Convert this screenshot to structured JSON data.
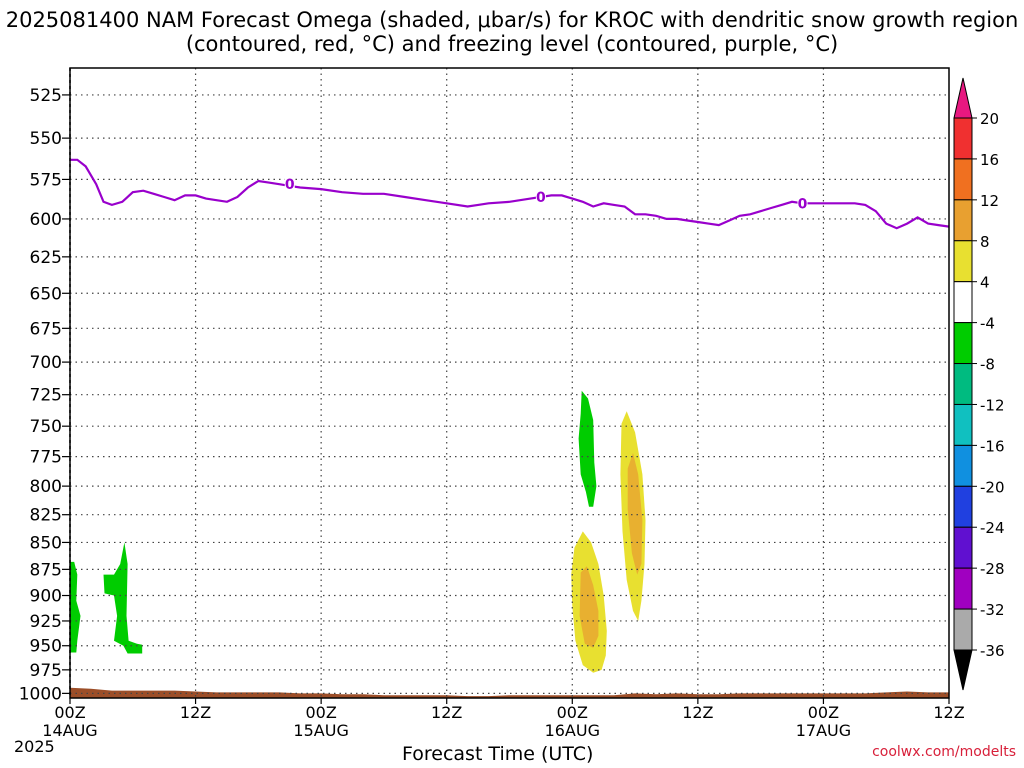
{
  "title": "2025081400 NAM Forecast Omega (shaded, μbar/s) for KROC with dendritic snow growth region (contoured, red, °C) and freezing level (contoured, purple, °C)",
  "xlabel": "Forecast Time (UTC)",
  "credit": "coolwx.com/modelts",
  "year": "2025",
  "chart_data": {
    "type": "area",
    "y_axis": {
      "label": "",
      "ticks": [
        525,
        550,
        575,
        600,
        625,
        650,
        675,
        700,
        725,
        750,
        775,
        800,
        825,
        850,
        875,
        900,
        925,
        950,
        975,
        1000
      ],
      "ylim": [
        1005,
        510
      ],
      "log_scale": true,
      "grid": true
    },
    "x_axis": {
      "label": "Forecast Time (UTC)",
      "ticks": [
        {
          "hour": 0,
          "time": "00Z",
          "date": "14AUG"
        },
        {
          "hour": 12,
          "time": "12Z",
          "date": ""
        },
        {
          "hour": 24,
          "time": "00Z",
          "date": "15AUG"
        },
        {
          "hour": 36,
          "time": "12Z",
          "date": ""
        },
        {
          "hour": 48,
          "time": "00Z",
          "date": "16AUG"
        },
        {
          "hour": 60,
          "time": "12Z",
          "date": ""
        },
        {
          "hour": 72,
          "time": "00Z",
          "date": "17AUG"
        },
        {
          "hour": 84,
          "time": "12Z",
          "date": ""
        }
      ],
      "xlim": [
        0,
        84
      ],
      "grid": true
    },
    "freezing_level": {
      "name": "freezing level",
      "color": "#9900cc",
      "contour_label": "0",
      "points": [
        [
          0,
          563
        ],
        [
          0.7,
          563
        ],
        [
          1.5,
          567
        ],
        [
          2.5,
          578
        ],
        [
          3.2,
          589
        ],
        [
          4,
          591
        ],
        [
          5,
          589
        ],
        [
          6,
          583
        ],
        [
          7,
          582
        ],
        [
          8,
          584
        ],
        [
          9,
          586
        ],
        [
          10,
          588
        ],
        [
          11,
          585
        ],
        [
          12,
          585
        ],
        [
          13,
          587
        ],
        [
          14,
          588
        ],
        [
          15,
          589
        ],
        [
          16,
          586
        ],
        [
          17,
          580
        ],
        [
          18,
          576
        ],
        [
          19,
          577
        ],
        [
          20,
          578
        ],
        [
          21,
          579
        ],
        [
          22,
          580
        ],
        [
          24,
          581
        ],
        [
          26,
          583
        ],
        [
          28,
          584
        ],
        [
          30,
          584
        ],
        [
          32,
          586
        ],
        [
          34,
          588
        ],
        [
          36,
          590
        ],
        [
          38,
          592
        ],
        [
          39,
          591
        ],
        [
          40,
          590
        ],
        [
          42,
          589
        ],
        [
          44,
          587
        ],
        [
          46,
          585
        ],
        [
          47,
          585
        ],
        [
          48,
          587
        ],
        [
          49,
          589
        ],
        [
          50,
          592
        ],
        [
          51,
          590
        ],
        [
          52,
          591
        ],
        [
          53,
          592
        ],
        [
          54,
          597
        ],
        [
          55,
          597
        ],
        [
          56,
          598
        ],
        [
          57,
          600
        ],
        [
          58,
          600
        ],
        [
          59,
          601
        ],
        [
          60,
          602
        ],
        [
          61,
          603
        ],
        [
          62,
          604
        ],
        [
          63,
          601
        ],
        [
          64,
          598
        ],
        [
          65,
          597
        ],
        [
          66,
          595
        ],
        [
          67,
          593
        ],
        [
          68,
          591
        ],
        [
          69,
          589
        ],
        [
          70,
          590
        ],
        [
          71,
          590
        ],
        [
          72,
          590
        ],
        [
          73,
          590
        ],
        [
          74,
          590
        ],
        [
          75,
          590
        ],
        [
          76,
          591
        ],
        [
          77,
          595
        ],
        [
          78,
          603
        ],
        [
          79,
          606
        ],
        [
          80,
          603
        ],
        [
          81,
          599
        ],
        [
          82,
          603
        ],
        [
          83,
          604
        ],
        [
          84,
          605
        ]
      ],
      "label_positions": [
        [
          21,
          578
        ],
        [
          45,
          586
        ],
        [
          70,
          590
        ]
      ]
    },
    "omega_regions": [
      {
        "level": "-8",
        "color": "#00cc00",
        "points": [
          [
            0,
            868
          ],
          [
            0.4,
            868
          ],
          [
            0.7,
            880
          ],
          [
            0.6,
            905
          ],
          [
            1.0,
            920
          ],
          [
            0.7,
            945
          ],
          [
            0.6,
            957
          ],
          [
            0,
            957
          ]
        ]
      },
      {
        "level": "-8",
        "color": "#00cc00",
        "points": [
          [
            3.2,
            880
          ],
          [
            4.2,
            880
          ],
          [
            4.8,
            870
          ],
          [
            5.2,
            850
          ],
          [
            5.5,
            870
          ],
          [
            5.4,
            920
          ],
          [
            5.6,
            945
          ],
          [
            6.4,
            948
          ],
          [
            6.9,
            949
          ],
          [
            6.9,
            958
          ],
          [
            5.5,
            958
          ],
          [
            5.1,
            950
          ],
          [
            4.2,
            945
          ],
          [
            4.5,
            920
          ],
          [
            4.2,
            900
          ],
          [
            3.3,
            898
          ]
        ]
      },
      {
        "level": "-8",
        "color": "#00cc00",
        "points": [
          [
            48.9,
            722
          ],
          [
            49.5,
            728
          ],
          [
            50.0,
            745
          ],
          [
            50.1,
            780
          ],
          [
            50.3,
            800
          ],
          [
            50.0,
            818
          ],
          [
            49.6,
            818
          ],
          [
            49.3,
            805
          ],
          [
            48.8,
            790
          ],
          [
            48.6,
            760
          ],
          [
            48.8,
            740
          ]
        ]
      },
      {
        "level": "4",
        "color": "#e8e030",
        "points": [
          [
            48.2,
            855
          ],
          [
            49.0,
            840
          ],
          [
            49.8,
            850
          ],
          [
            50.5,
            870
          ],
          [
            51.0,
            900
          ],
          [
            51.3,
            935
          ],
          [
            51.2,
            960
          ],
          [
            50.8,
            975
          ],
          [
            50.0,
            978
          ],
          [
            49.0,
            970
          ],
          [
            48.3,
            945
          ],
          [
            48.0,
            910
          ],
          [
            47.9,
            880
          ]
        ]
      },
      {
        "level": "8",
        "color": "#e8b030",
        "points": [
          [
            48.8,
            878
          ],
          [
            49.4,
            872
          ],
          [
            50.0,
            890
          ],
          [
            50.5,
            915
          ],
          [
            50.5,
            940
          ],
          [
            50.0,
            952
          ],
          [
            49.2,
            948
          ],
          [
            48.7,
            920
          ]
        ]
      },
      {
        "level": "4",
        "color": "#e8e030",
        "points": [
          [
            52.7,
            748
          ],
          [
            53.2,
            738
          ],
          [
            54.0,
            755
          ],
          [
            54.7,
            790
          ],
          [
            55.0,
            830
          ],
          [
            54.9,
            870
          ],
          [
            54.6,
            905
          ],
          [
            54.3,
            925
          ],
          [
            53.8,
            915
          ],
          [
            53.2,
            885
          ],
          [
            52.8,
            840
          ],
          [
            52.6,
            790
          ]
        ]
      },
      {
        "level": "8",
        "color": "#e8b030",
        "points": [
          [
            53.3,
            785
          ],
          [
            53.8,
            772
          ],
          [
            54.3,
            790
          ],
          [
            54.7,
            830
          ],
          [
            54.6,
            870
          ],
          [
            54.2,
            880
          ],
          [
            53.7,
            860
          ],
          [
            53.3,
            820
          ]
        ]
      }
    ],
    "terrain": {
      "color": "#9c4e28",
      "surface_pressure": [
        [
          0,
          994
        ],
        [
          2,
          995
        ],
        [
          4,
          997
        ],
        [
          6,
          997
        ],
        [
          8,
          997
        ],
        [
          10,
          997
        ],
        [
          12,
          998
        ],
        [
          14,
          999
        ],
        [
          16,
          999
        ],
        [
          18,
          999
        ],
        [
          20,
          999
        ],
        [
          22,
          1000
        ],
        [
          24,
          1000
        ],
        [
          26,
          1001
        ],
        [
          28,
          1001
        ],
        [
          30,
          1002
        ],
        [
          32,
          1002
        ],
        [
          34,
          1002
        ],
        [
          36,
          1002
        ],
        [
          38,
          1003
        ],
        [
          40,
          1003
        ],
        [
          42,
          1002
        ],
        [
          44,
          1002
        ],
        [
          46,
          1002
        ],
        [
          48,
          1002
        ],
        [
          50,
          1002
        ],
        [
          52,
          1002
        ],
        [
          54,
          1000
        ],
        [
          56,
          1001
        ],
        [
          58,
          1000
        ],
        [
          60,
          1001
        ],
        [
          62,
          1001
        ],
        [
          64,
          1000
        ],
        [
          66,
          1000
        ],
        [
          68,
          1000
        ],
        [
          70,
          1000
        ],
        [
          72,
          1000
        ],
        [
          74,
          1000
        ],
        [
          76,
          1000
        ],
        [
          78,
          999
        ],
        [
          80,
          998
        ],
        [
          82,
          999
        ],
        [
          84,
          999
        ]
      ]
    },
    "colorbar": {
      "labels": [
        "20",
        "16",
        "12",
        "8",
        "4",
        "-4",
        "-8",
        "-12",
        "-16",
        "-20",
        "-24",
        "-28",
        "-32",
        "-36"
      ],
      "colors": [
        "#e81880",
        "#f03030",
        "#f07020",
        "#e8a030",
        "#e8e030",
        "#ffffff",
        "#00cc00",
        "#00bb80",
        "#10c0c0",
        "#1090e0",
        "#2040e0",
        "#6010d0",
        "#a000c0",
        "#aaaaaa",
        "#000000"
      ]
    }
  }
}
